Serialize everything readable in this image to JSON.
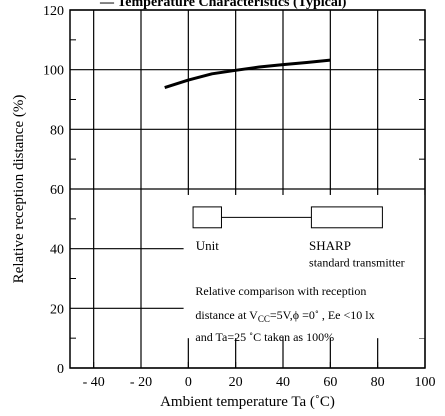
{
  "chart_data": {
    "type": "line",
    "title": "",
    "title_fragment": "— Temperature Characteristics (Typical)",
    "xlabel": "Ambient temperature Ta (˚C)",
    "ylabel": "Relative reception distance (%)",
    "xlim": [
      -50,
      100
    ],
    "ylim": [
      0,
      120
    ],
    "xticks": [
      -40,
      -20,
      0,
      20,
      40,
      60,
      80,
      100
    ],
    "xtick_labels": [
      "- 40",
      "- 20",
      "0",
      "20",
      "40",
      "60",
      "80",
      "100"
    ],
    "yticks": [
      0,
      20,
      40,
      60,
      80,
      100,
      120
    ],
    "ytick_labels": [
      "0",
      "20",
      "40",
      "60",
      "80",
      "100",
      "120"
    ],
    "grid": true,
    "series": [
      {
        "name": "",
        "x": [
          -10,
          0,
          10,
          20,
          30,
          40,
          50,
          60
        ],
        "y": [
          94,
          96.5,
          98.6,
          99.8,
          100.9,
          101.7,
          102.4,
          103.2
        ]
      }
    ],
    "legend": {
      "placement": "bottom-right",
      "left_label": "Unit",
      "right_label": "SHARP",
      "right_sublabel": "standard transmitter"
    },
    "annotation": {
      "line1": "Relative comparison with reception",
      "line2_prefix": "distance at V",
      "line2_sub": "CC",
      "line2_suffix": "=5V,ϕ  =0˚ , Ee <10 lx",
      "line3": "and Ta=25 ˚C taken as 100%"
    }
  }
}
